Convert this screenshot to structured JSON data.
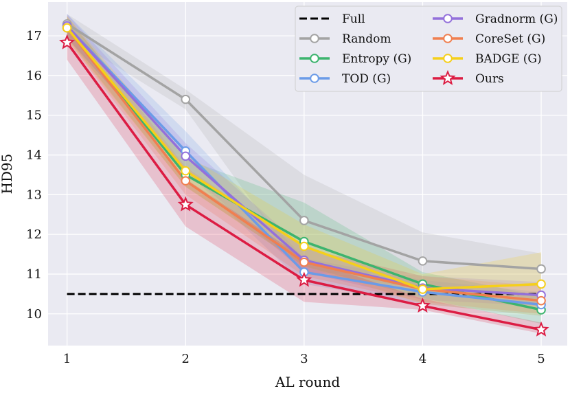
{
  "chart_data": {
    "type": "line",
    "title": "",
    "xlabel": "AL round",
    "ylabel": "HD95",
    "x": [
      1,
      2,
      3,
      4,
      5
    ],
    "xlim": [
      0.84,
      5.22
    ],
    "ylim": [
      9.2,
      17.85
    ],
    "xticks": [
      "1",
      "2",
      "3",
      "4",
      "5"
    ],
    "yticks": [
      "10",
      "11",
      "12",
      "13",
      "14",
      "15",
      "16",
      "17"
    ],
    "grid": true,
    "legend_position": "top-right",
    "baseline": {
      "name": "Full",
      "value": 10.5,
      "x_range": [
        1,
        5
      ],
      "color": "#000000",
      "style": "dashed"
    },
    "series": [
      {
        "name": "Random",
        "color": "#a3a3a3",
        "marker": "circle",
        "values": [
          17.3,
          15.4,
          12.35,
          11.33,
          11.13
        ],
        "band_low": [
          17.0,
          15.15,
          11.0,
          10.65,
          10.7
        ],
        "band_high": [
          17.55,
          15.65,
          13.5,
          12.05,
          11.52
        ]
      },
      {
        "name": "Entropy (G)",
        "color": "#3cb46e",
        "marker": "circle",
        "values": [
          17.2,
          13.5,
          11.82,
          10.75,
          10.1
        ],
        "band_low": [
          16.95,
          13.2,
          11.2,
          10.4,
          9.75
        ],
        "band_high": [
          17.45,
          13.9,
          12.8,
          11.05,
          10.45
        ]
      },
      {
        "name": "TOD (G)",
        "color": "#6b9be8",
        "marker": "circle",
        "values": [
          17.25,
          14.1,
          11.05,
          10.55,
          10.23
        ],
        "band_low": [
          16.95,
          13.6,
          10.75,
          10.25,
          9.95
        ],
        "band_high": [
          17.55,
          14.6,
          11.4,
          10.85,
          10.55
        ]
      },
      {
        "name": "Gradnorm (G)",
        "color": "#9370db",
        "marker": "circle",
        "values": [
          17.25,
          13.97,
          11.35,
          10.65,
          10.47
        ],
        "band_low": [
          16.95,
          13.6,
          11.05,
          10.35,
          10.2
        ],
        "band_high": [
          17.55,
          14.3,
          11.65,
          10.95,
          10.8
        ]
      },
      {
        "name": "CoreSet (G)",
        "color": "#f07f50",
        "marker": "circle",
        "values": [
          17.2,
          13.35,
          11.3,
          10.62,
          10.33
        ],
        "band_low": [
          16.9,
          13.0,
          10.95,
          10.3,
          10.0
        ],
        "band_high": [
          17.5,
          13.7,
          11.65,
          10.95,
          10.7
        ]
      },
      {
        "name": "BADGE (G)",
        "color": "#f5cf1b",
        "marker": "circle",
        "values": [
          17.2,
          13.6,
          11.7,
          10.62,
          10.75
        ],
        "band_low": [
          16.9,
          13.2,
          11.2,
          10.25,
          9.95
        ],
        "band_high": [
          17.5,
          14.0,
          12.25,
          11.0,
          11.55
        ]
      },
      {
        "name": "Ours",
        "color": "#dc1c43",
        "marker": "star",
        "values": [
          16.83,
          12.75,
          10.85,
          10.2,
          9.6
        ],
        "band_low": [
          16.4,
          12.2,
          10.3,
          10.1,
          9.5
        ],
        "band_high": [
          17.2,
          13.4,
          11.4,
          10.38,
          9.78
        ]
      }
    ],
    "legend": {
      "left_column": [
        "Full",
        "Random",
        "Entropy (G)",
        "TOD (G)"
      ],
      "right_column": [
        "Gradnorm (G)",
        "CoreSet (G)",
        "BADGE (G)",
        "Ours"
      ]
    }
  }
}
